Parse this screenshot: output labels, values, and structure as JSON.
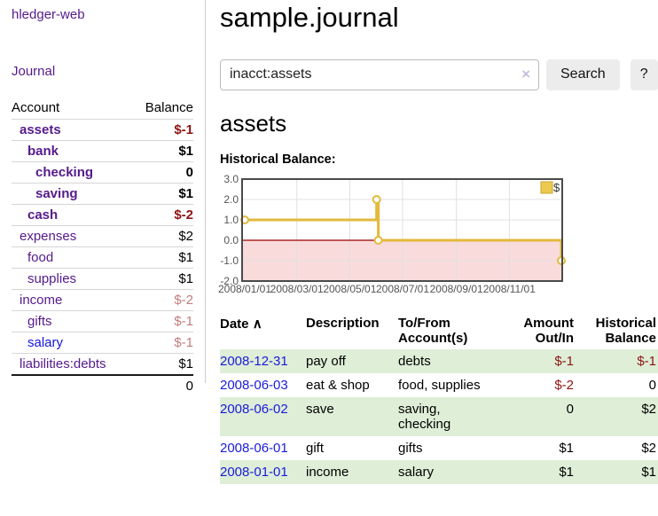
{
  "app": {
    "title": "hledger-web"
  },
  "sidebar": {
    "journal_link": "Journal",
    "accounts": {
      "col_account": "Account",
      "col_balance": "Balance",
      "rows": [
        {
          "name": "assets",
          "balance": "$-1",
          "indent": 1,
          "bold": true,
          "balance_style": "neg-strong",
          "link_blue": false
        },
        {
          "name": "bank",
          "balance": "$1",
          "indent": 2,
          "bold": true,
          "balance_style": "",
          "link_blue": false
        },
        {
          "name": "checking",
          "balance": "0",
          "indent": 3,
          "bold": true,
          "balance_style": "",
          "link_blue": false
        },
        {
          "name": "saving",
          "balance": "$1",
          "indent": 3,
          "bold": true,
          "balance_style": "",
          "link_blue": false
        },
        {
          "name": "cash",
          "balance": "$-2",
          "indent": 2,
          "bold": true,
          "balance_style": "neg-strong",
          "link_blue": false
        },
        {
          "name": "expenses",
          "balance": "$2",
          "indent": 1,
          "bold": false,
          "balance_style": "",
          "link_blue": false
        },
        {
          "name": "food",
          "balance": "$1",
          "indent": 2,
          "bold": false,
          "balance_style": "",
          "link_blue": false
        },
        {
          "name": "supplies",
          "balance": "$1",
          "indent": 2,
          "bold": false,
          "balance_style": "",
          "link_blue": false
        },
        {
          "name": "income",
          "balance": "$-2",
          "indent": 1,
          "bold": false,
          "balance_style": "neg-dim",
          "link_blue": false
        },
        {
          "name": "gifts",
          "balance": "$-1",
          "indent": 2,
          "bold": false,
          "balance_style": "neg-dim",
          "link_blue": false
        },
        {
          "name": "salary",
          "balance": "$-1",
          "indent": 2,
          "bold": false,
          "balance_style": "neg-dim",
          "link_blue": true
        },
        {
          "name": "liabilities:debts",
          "balance": "$1",
          "indent": 1,
          "bold": false,
          "balance_style": "",
          "link_blue": false
        }
      ],
      "total": "0"
    }
  },
  "header": {
    "title": "sample.journal"
  },
  "search": {
    "value": "inacct:assets",
    "clear_icon": "×",
    "button_label": "Search",
    "help_label": "?"
  },
  "account_page": {
    "title": "assets",
    "chart_label": "Historical Balance:"
  },
  "chart_data": {
    "type": "line",
    "step": true,
    "title": "Historical Balance",
    "legend": "$",
    "legend_position": "top-right",
    "grid": true,
    "ylim": [
      -2,
      3
    ],
    "y_ticks": [
      "3.0",
      "2.0",
      "1.0",
      "0.0",
      "-1.0",
      "-2.0"
    ],
    "y_tick_values": [
      3,
      2,
      1,
      0,
      -1,
      -2
    ],
    "x_ticks": [
      {
        "label": "2008/01/01",
        "day": 0
      },
      {
        "label": "2008/03/01",
        "day": 60
      },
      {
        "label": "2008/05/01",
        "day": 121
      },
      {
        "label": "2008/07/01",
        "day": 182
      },
      {
        "label": "2008/09/01",
        "day": 244
      },
      {
        "label": "2008/11/01",
        "day": 305
      }
    ],
    "x_domain_days": 365,
    "series": [
      {
        "name": "$",
        "color": "#e2ba3c",
        "points": [
          {
            "date": "2008-01-01",
            "day": 0,
            "value": 1
          },
          {
            "date": "2008-06-01",
            "day": 152,
            "value": 2
          },
          {
            "date": "2008-06-03",
            "day": 154,
            "value": 0
          },
          {
            "date": "2008-12-31",
            "day": 365,
            "value": -1
          }
        ]
      }
    ],
    "colors": {
      "negative_region_fill": "#fadbdb",
      "zero_line": "#9b0000",
      "grid_line": "#e0e0e0",
      "plot_border": "#4a4a4a",
      "tick_label": "#555555",
      "legend_fill": "#ecc94f",
      "legend_border": "#c9a62e"
    }
  },
  "register": {
    "columns": [
      "Date",
      "Description",
      "To/From Account(s)",
      "Amount Out/In",
      "Historical Balance"
    ],
    "sort_icon": "∧",
    "rows": [
      {
        "date": "2008-12-31",
        "description": "pay off",
        "accounts": "debts",
        "amount": "$-1",
        "amount_neg": true,
        "balance": "$-1",
        "balance_neg": true,
        "green": true
      },
      {
        "date": "2008-06-03",
        "description": "eat & shop",
        "accounts": "food, supplies",
        "amount": "$-2",
        "amount_neg": true,
        "balance": "0",
        "balance_neg": false,
        "green": false
      },
      {
        "date": "2008-06-02",
        "description": "save",
        "accounts": "saving, checking",
        "amount": "0",
        "amount_neg": false,
        "balance": "$2",
        "balance_neg": false,
        "green": true
      },
      {
        "date": "2008-06-01",
        "description": "gift",
        "accounts": "gifts",
        "amount": "$1",
        "amount_neg": false,
        "balance": "$2",
        "balance_neg": false,
        "green": false
      },
      {
        "date": "2008-01-01",
        "description": "income",
        "accounts": "salary",
        "amount": "$1",
        "amount_neg": false,
        "balance": "$1",
        "balance_neg": false,
        "green": true
      }
    ]
  }
}
